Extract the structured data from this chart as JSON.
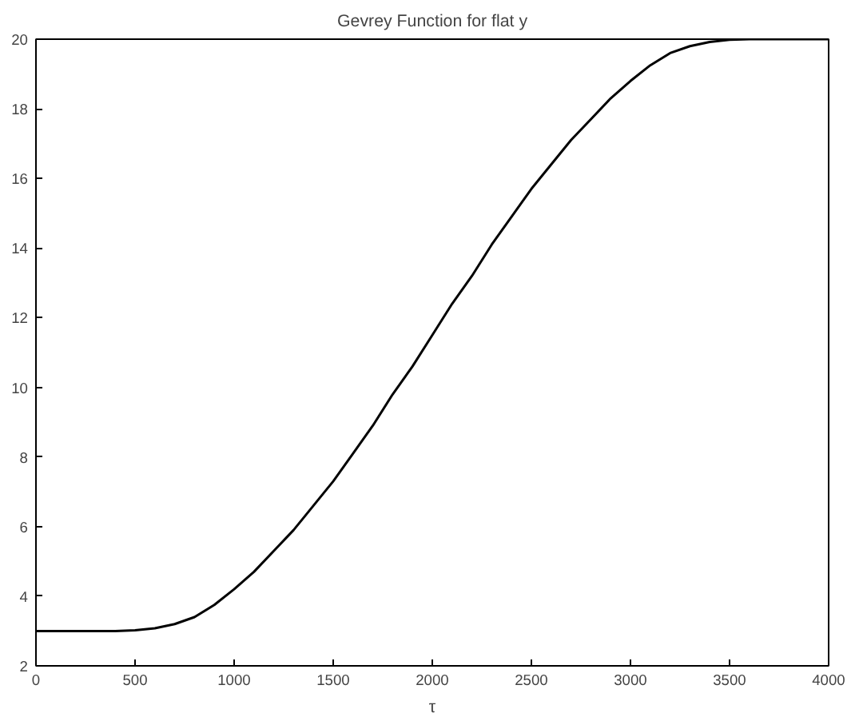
{
  "chart_data": {
    "type": "line",
    "title": "Gevrey Function for flat y",
    "xlabel": "τ",
    "x": [
      0,
      200,
      400,
      500,
      600,
      700,
      800,
      900,
      1000,
      1100,
      1200,
      1300,
      1400,
      1500,
      1600,
      1700,
      1800,
      1900,
      2000,
      2100,
      2200,
      2300,
      2400,
      2500,
      2600,
      2700,
      2800,
      2900,
      3000,
      3100,
      3200,
      3300,
      3400,
      3500,
      3600,
      3800,
      4000
    ],
    "series": [
      {
        "color": "#000000",
        "values": [
          3,
          3,
          3,
          3.02,
          3.08,
          3.2,
          3.4,
          3.75,
          4.2,
          4.7,
          5.3,
          5.9,
          6.6,
          7.3,
          8.1,
          8.9,
          9.8,
          10.6,
          11.5,
          12.4,
          13.2,
          14.1,
          14.9,
          15.7,
          16.4,
          17.1,
          17.7,
          18.3,
          18.8,
          19.25,
          19.6,
          19.8,
          19.92,
          19.98,
          20,
          20,
          20
        ]
      }
    ],
    "xlim": [
      0,
      4000
    ],
    "xticks": [
      0,
      500,
      1000,
      1500,
      2000,
      2500,
      3000,
      3500,
      4000
    ],
    "ylim": [
      2,
      20
    ],
    "yticks": [
      2,
      4,
      6,
      8,
      10,
      12,
      14,
      16,
      18,
      20
    ],
    "grid": false,
    "line_style": "solid"
  }
}
